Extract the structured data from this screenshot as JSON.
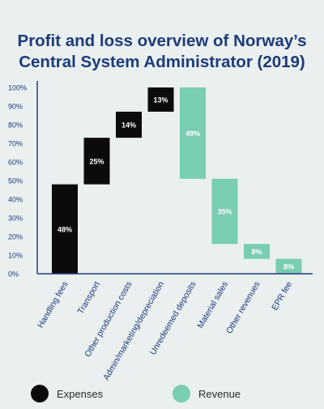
{
  "chart_data": {
    "type": "waterfall",
    "title_line1": "Profit and loss overview of Norway’s",
    "title_line2": "Central System Administrator (2019)",
    "y_ticks": [
      "0%",
      "10%",
      "20%",
      "30%",
      "40%",
      "50%",
      "60%",
      "70%",
      "80%",
      "90%",
      "100%"
    ],
    "ylim": [
      0,
      100
    ],
    "bars": [
      {
        "category": "Handling fees",
        "group": "expenses",
        "start": 0,
        "end": 48,
        "label": "48%"
      },
      {
        "category": "Transport",
        "group": "expenses",
        "start": 48,
        "end": 73,
        "label": "25%"
      },
      {
        "category": "Other production costs",
        "group": "expenses",
        "start": 73,
        "end": 87,
        "label": "14%"
      },
      {
        "category": "Admin/marketing/depreciation",
        "group": "expenses",
        "start": 87,
        "end": 100,
        "label": "13%"
      },
      {
        "category": "Unredeemed deposits",
        "group": "revenue",
        "start": 51,
        "end": 100,
        "label": "49%"
      },
      {
        "category": "Material sales",
        "group": "revenue",
        "start": 16,
        "end": 51,
        "label": "35%"
      },
      {
        "category": "Other revenues",
        "group": "revenue",
        "start": 8,
        "end": 16,
        "label": "8%"
      },
      {
        "category": "EPR fee",
        "group": "revenue",
        "start": 0,
        "end": 8,
        "label": "8%"
      }
    ],
    "legend": {
      "expenses": "Expenses",
      "revenue": "Revenue"
    },
    "colors": {
      "expenses": "#0b0b0b",
      "revenue": "#78cdb2",
      "axis": "#1f3a7a",
      "tick_text": "#1f3a7a",
      "title": "#1f3a7a"
    }
  }
}
